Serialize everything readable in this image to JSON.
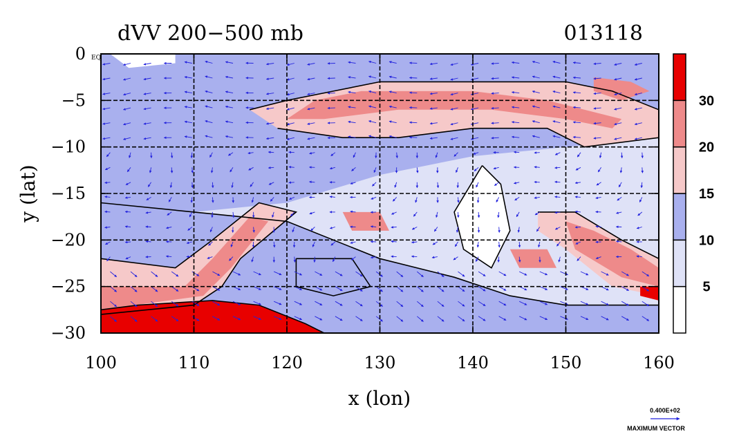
{
  "chart_data": {
    "type": "heatmap",
    "title": "dVV 200−500 mb",
    "subtitle": "013118",
    "xlabel": "x (lon)",
    "ylabel": "y (lat)",
    "xlim": [
      100,
      160
    ],
    "ylim": [
      -30,
      0
    ],
    "x_ticks": [
      "100",
      "110",
      "120",
      "130",
      "140",
      "150",
      "160"
    ],
    "y_ticks": [
      "0",
      "−5",
      "−10",
      "−15",
      "−20",
      "−25",
      "−30"
    ],
    "grid": true,
    "colorbar": {
      "levels": [
        "5",
        "10",
        "15",
        "20",
        "30"
      ],
      "colors": [
        "#ffffff",
        "#dfe2f7",
        "#a9b0ee",
        "#f6c9c9",
        "#ee8a8a",
        "#e80000"
      ]
    },
    "bands": [
      {
        "level": 1,
        "points": [
          [
            100,
            0
          ],
          [
            160,
            0
          ],
          [
            160,
            -30
          ],
          [
            100,
            -30
          ]
        ]
      },
      {
        "level": 2,
        "points": [
          [
            100,
            0
          ],
          [
            160,
            0
          ],
          [
            160,
            -9
          ],
          [
            150,
            -10
          ],
          [
            140,
            -11
          ],
          [
            130,
            -13
          ],
          [
            120,
            -16
          ],
          [
            110,
            -17
          ],
          [
            100,
            -16
          ]
        ]
      },
      {
        "level": 0,
        "points": [
          [
            141,
            -12
          ],
          [
            143,
            -14
          ],
          [
            144,
            -19
          ],
          [
            142,
            -23
          ],
          [
            139,
            -21
          ],
          [
            138,
            -17
          ]
        ]
      },
      {
        "level": 0,
        "points": [
          [
            121,
            -22
          ],
          [
            127,
            -22
          ],
          [
            129,
            -25
          ],
          [
            125,
            -26
          ],
          [
            121,
            -25
          ]
        ]
      },
      {
        "level": 0,
        "points": [
          [
            101,
            0
          ],
          [
            108,
            0
          ],
          [
            108,
            -1
          ],
          [
            103,
            -1.5
          ]
        ]
      },
      {
        "level": 2,
        "points": [
          [
            100,
            -16
          ],
          [
            110,
            -17
          ],
          [
            120,
            -18
          ],
          [
            130,
            -22
          ],
          [
            138,
            -24
          ],
          [
            144,
            -26
          ],
          [
            150,
            -27
          ],
          [
            160,
            -27
          ],
          [
            160,
            -30
          ],
          [
            100,
            -30
          ]
        ]
      },
      {
        "level": 3,
        "points": [
          [
            125,
            -4
          ],
          [
            130,
            -3
          ],
          [
            140,
            -3
          ],
          [
            150,
            -3
          ],
          [
            155,
            -4
          ],
          [
            160,
            -6
          ],
          [
            160,
            -9
          ],
          [
            152,
            -10
          ],
          [
            148,
            -8
          ],
          [
            140,
            -8
          ],
          [
            132,
            -9
          ],
          [
            126,
            -9
          ],
          [
            119,
            -8
          ],
          [
            116,
            -6
          ],
          [
            120,
            -5
          ]
        ]
      },
      {
        "level": 4,
        "points": [
          [
            128,
            -4
          ],
          [
            140,
            -4
          ],
          [
            148,
            -5
          ],
          [
            152,
            -6
          ],
          [
            156,
            -7
          ],
          [
            155,
            -8
          ],
          [
            150,
            -7
          ],
          [
            142,
            -6
          ],
          [
            132,
            -6
          ],
          [
            124,
            -7
          ],
          [
            120,
            -7
          ],
          [
            123,
            -5
          ]
        ]
      },
      {
        "level": 4,
        "points": [
          [
            153,
            -2.5
          ],
          [
            157,
            -3
          ],
          [
            159,
            -4
          ],
          [
            156,
            -5
          ],
          [
            153,
            -4
          ]
        ]
      },
      {
        "level": 3,
        "points": [
          [
            100,
            -22
          ],
          [
            108,
            -23
          ],
          [
            112,
            -20
          ],
          [
            117,
            -16
          ],
          [
            121,
            -17
          ],
          [
            115,
            -22
          ],
          [
            113,
            -25
          ],
          [
            110,
            -27
          ],
          [
            100,
            -28
          ]
        ]
      },
      {
        "level": 4,
        "points": [
          [
            100,
            -25
          ],
          [
            109,
            -25
          ],
          [
            112,
            -22
          ],
          [
            116,
            -17.5
          ],
          [
            118,
            -18
          ],
          [
            114,
            -23
          ],
          [
            111,
            -26
          ],
          [
            100,
            -27.5
          ]
        ]
      },
      {
        "level": 3,
        "points": [
          [
            147,
            -17
          ],
          [
            151,
            -17
          ],
          [
            156,
            -20
          ],
          [
            160,
            -22
          ],
          [
            160,
            -26
          ],
          [
            155,
            -25
          ],
          [
            150,
            -21
          ],
          [
            147,
            -19
          ]
        ]
      },
      {
        "level": 4,
        "points": [
          [
            150,
            -18
          ],
          [
            153,
            -19
          ],
          [
            157,
            -21
          ],
          [
            160,
            -23
          ],
          [
            160,
            -25
          ],
          [
            156,
            -24
          ],
          [
            151,
            -21
          ]
        ]
      },
      {
        "level": 4,
        "points": [
          [
            144,
            -21
          ],
          [
            148,
            -21
          ],
          [
            149,
            -23
          ],
          [
            145,
            -23
          ]
        ]
      },
      {
        "level": 4,
        "points": [
          [
            126,
            -17
          ],
          [
            130,
            -17
          ],
          [
            131,
            -19
          ],
          [
            127,
            -19
          ]
        ]
      },
      {
        "level": 5,
        "points": [
          [
            100,
            -27.5
          ],
          [
            104,
            -27
          ],
          [
            112,
            -26.5
          ],
          [
            117,
            -27
          ],
          [
            122,
            -29
          ],
          [
            124,
            -30
          ],
          [
            100,
            -30
          ]
        ]
      },
      {
        "level": 5,
        "points": [
          [
            158,
            -25
          ],
          [
            160,
            -25
          ],
          [
            160,
            -26.5
          ],
          [
            158,
            -26
          ]
        ]
      }
    ],
    "contour_lines": [
      [
        [
          100,
          -16
        ],
        [
          110,
          -17
        ],
        [
          120,
          -18
        ],
        [
          130,
          -22
        ],
        [
          138,
          -24
        ],
        [
          144,
          -26
        ],
        [
          150,
          -27
        ],
        [
          160,
          -27
        ]
      ],
      [
        [
          116,
          -6
        ],
        [
          120,
          -5
        ],
        [
          125,
          -4
        ],
        [
          130,
          -3
        ],
        [
          140,
          -3
        ],
        [
          150,
          -3
        ],
        [
          155,
          -4
        ],
        [
          160,
          -6
        ]
      ],
      [
        [
          119,
          -8
        ],
        [
          126,
          -9
        ],
        [
          132,
          -9
        ],
        [
          140,
          -8
        ],
        [
          148,
          -8
        ],
        [
          152,
          -10
        ],
        [
          160,
          -9
        ]
      ],
      [
        [
          100,
          -22
        ],
        [
          108,
          -23
        ],
        [
          112,
          -20
        ],
        [
          117,
          -16
        ],
        [
          121,
          -17
        ],
        [
          115,
          -22
        ],
        [
          113,
          -25
        ],
        [
          110,
          -27
        ],
        [
          100,
          -28
        ]
      ],
      [
        [
          100,
          -27.5
        ],
        [
          104,
          -27
        ],
        [
          112,
          -26.5
        ],
        [
          117,
          -27
        ],
        [
          122,
          -29
        ],
        [
          124,
          -30
        ]
      ],
      [
        [
          147,
          -17
        ],
        [
          151,
          -17
        ],
        [
          156,
          -20
        ],
        [
          160,
          -22
        ]
      ],
      [
        [
          141,
          -12
        ],
        [
          143,
          -14
        ],
        [
          144,
          -19
        ],
        [
          142,
          -23
        ],
        [
          139,
          -21
        ],
        [
          138,
          -17
        ],
        [
          141,
          -12
        ]
      ],
      [
        [
          121,
          -22
        ],
        [
          127,
          -22
        ],
        [
          129,
          -25
        ],
        [
          125,
          -26
        ],
        [
          121,
          -25
        ],
        [
          121,
          -22
        ]
      ]
    ],
    "vector_legend": {
      "magnitude": "0.400E+02",
      "label": "MAXIMUM VECTOR"
    },
    "corner_label": "EQ"
  }
}
